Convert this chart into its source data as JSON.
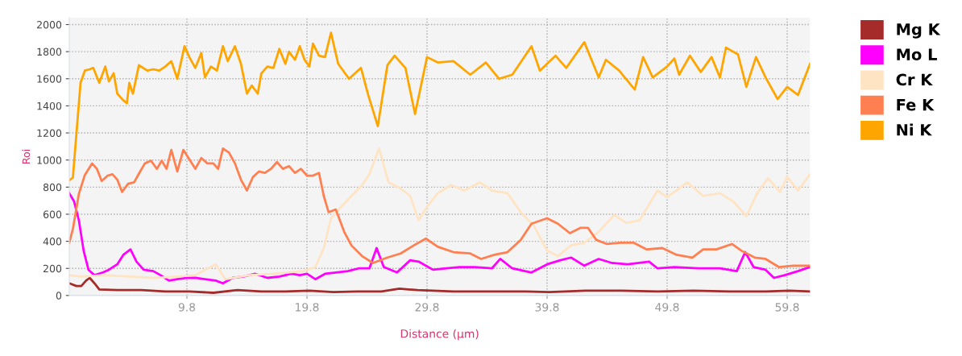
{
  "chart_data": {
    "type": "line",
    "xlabel": "Distance (µm)",
    "ylabel": "Roi",
    "xlim": [
      0,
      61.7
    ],
    "ylim": [
      0,
      2050
    ],
    "xticks": [
      9.8,
      19.8,
      29.8,
      39.8,
      49.8,
      59.8
    ],
    "yticks": [
      0,
      200,
      400,
      600,
      800,
      1000,
      1200,
      1400,
      1600,
      1800,
      2000
    ],
    "grid": true,
    "legend": "right",
    "line_style": "solid",
    "marker": "none",
    "series": [
      {
        "name": "Mg K",
        "color": "#a52a2a",
        "x": [
          0,
          0.6,
          1.0,
          1.4,
          1.7,
          2.1,
          2.5,
          4,
          6,
          8,
          10,
          12,
          14,
          16,
          18,
          20,
          22,
          24,
          26,
          27.5,
          29,
          32,
          35,
          38,
          40,
          43,
          46,
          49,
          52,
          55,
          58,
          60,
          61.7
        ],
        "values": [
          90,
          70,
          70,
          110,
          130,
          90,
          45,
          40,
          40,
          30,
          30,
          20,
          40,
          30,
          30,
          35,
          25,
          30,
          30,
          50,
          40,
          30,
          30,
          30,
          25,
          35,
          35,
          30,
          35,
          30,
          30,
          35,
          30
        ]
      },
      {
        "name": "Mo L",
        "color": "#ff00ff",
        "x": [
          0,
          0.4,
          0.8,
          1.2,
          1.6,
          2.1,
          2.8,
          3.3,
          4.0,
          4.5,
          5.1,
          5.6,
          6.2,
          7.0,
          7.6,
          8.3,
          9.0,
          9.8,
          10.5,
          11.3,
          12.2,
          12.8,
          13.6,
          14.5,
          15.5,
          16.5,
          17.5,
          18.5,
          19.2,
          19.8,
          20.5,
          21.3,
          22.2,
          23.2,
          24.1,
          25.0,
          25.6,
          26.2,
          27.3,
          28.4,
          29.1,
          30.3,
          31.4,
          32.5,
          33.8,
          35.2,
          35.9,
          36.9,
          38.5,
          39.8,
          40.9,
          41.8,
          42.9,
          44.1,
          45.2,
          46.5,
          48.3,
          49.0,
          50.4,
          52.4,
          54.2,
          55.6,
          56.3,
          57.0,
          58.0,
          58.7,
          59.6,
          60.7,
          61.7
        ],
        "values": [
          755,
          695,
          555,
          330,
          190,
          150,
          170,
          190,
          230,
          300,
          340,
          250,
          190,
          180,
          150,
          110,
          120,
          130,
          130,
          120,
          110,
          90,
          130,
          140,
          160,
          130,
          140,
          160,
          150,
          160,
          120,
          160,
          170,
          180,
          200,
          200,
          350,
          210,
          170,
          260,
          250,
          190,
          200,
          210,
          210,
          200,
          270,
          200,
          170,
          230,
          260,
          280,
          220,
          270,
          240,
          230,
          250,
          200,
          210,
          200,
          200,
          180,
          320,
          210,
          190,
          130,
          150,
          180,
          210
        ]
      },
      {
        "name": "Cr K",
        "color": "#ffe4c4",
        "x": [
          0,
          1,
          3,
          5,
          7,
          9,
          10.5,
          12.2,
          13,
          15,
          17,
          19.5,
          20.5,
          21.2,
          21.8,
          22.6,
          23.5,
          24.4,
          25.0,
          25.8,
          26.6,
          27.5,
          28.4,
          29.1,
          29.8,
          30.7,
          31.8,
          32.9,
          34.2,
          35.2,
          36.5,
          37.6,
          38.7,
          39.8,
          40.7,
          41.8,
          42.9,
          44.1,
          45.4,
          46.4,
          47.5,
          49.0,
          49.8,
          51.5,
          52.8,
          54.2,
          55.3,
          56.4,
          57.3,
          58.2,
          59.2,
          59.8,
          60.7,
          61.7
        ],
        "values": [
          150,
          140,
          150,
          140,
          130,
          140,
          150,
          230,
          120,
          150,
          160,
          180,
          210,
          350,
          570,
          650,
          735,
          815,
          895,
          1085,
          835,
          795,
          735,
          555,
          655,
          755,
          815,
          775,
          835,
          775,
          755,
          615,
          515,
          330,
          290,
          370,
          390,
          470,
          595,
          535,
          555,
          775,
          725,
          835,
          735,
          755,
          695,
          585,
          755,
          865,
          765,
          875,
          775,
          895
        ]
      },
      {
        "name": "Fe K",
        "color": "#ff7f50",
        "x": [
          0,
          0.3,
          0.8,
          1.3,
          1.9,
          2.3,
          2.7,
          3.2,
          3.6,
          4.0,
          4.4,
          4.9,
          5.4,
          5.9,
          6.3,
          6.8,
          7.3,
          7.7,
          8.1,
          8.5,
          9.0,
          9.5,
          10.0,
          10.5,
          11.0,
          11.5,
          12.0,
          12.4,
          12.8,
          13.3,
          13.8,
          14.3,
          14.8,
          15.3,
          15.8,
          16.3,
          16.8,
          17.3,
          17.8,
          18.3,
          18.8,
          19.3,
          19.8,
          20.3,
          20.8,
          21.2,
          21.6,
          22.2,
          22.9,
          23.5,
          24.4,
          25.3,
          26.5,
          27.6,
          28.7,
          29.7,
          30.7,
          32.0,
          33.4,
          34.3,
          35.4,
          36.5,
          37.6,
          38.5,
          39.8,
          40.7,
          41.7,
          42.6,
          43.2,
          43.9,
          44.8,
          45.9,
          47.0,
          48.1,
          49.4,
          50.6,
          51.9,
          52.8,
          53.9,
          55.2,
          56.0,
          57.1,
          58.0,
          59.1,
          60.3,
          61.7
        ],
        "values": [
          390,
          490,
          750,
          890,
          975,
          935,
          845,
          885,
          895,
          855,
          765,
          825,
          835,
          915,
          975,
          995,
          935,
          995,
          935,
          1075,
          915,
          1075,
          1005,
          935,
          1015,
          975,
          975,
          935,
          1085,
          1055,
          975,
          855,
          775,
          875,
          915,
          905,
          935,
          985,
          935,
          955,
          905,
          935,
          885,
          885,
          905,
          735,
          615,
          635,
          470,
          370,
          290,
          240,
          280,
          310,
          370,
          420,
          360,
          320,
          310,
          270,
          300,
          320,
          410,
          530,
          570,
          530,
          460,
          500,
          500,
          410,
          380,
          390,
          390,
          340,
          350,
          300,
          280,
          340,
          340,
          380,
          330,
          280,
          270,
          210,
          220,
          220
        ]
      },
      {
        "name": "Ni K",
        "color": "#ffa500",
        "x": [
          0,
          0.3,
          0.94,
          1.3,
          1.7,
          2.0,
          2.5,
          3.0,
          3.3,
          3.7,
          4.0,
          4.5,
          4.8,
          5.0,
          5.3,
          5.8,
          6.5,
          7.0,
          7.5,
          8.0,
          8.5,
          9.0,
          9.6,
          10.0,
          10.5,
          11.0,
          11.3,
          11.8,
          12.3,
          12.8,
          13.2,
          13.8,
          14.3,
          14.8,
          15.2,
          15.7,
          16.0,
          16.5,
          17.0,
          17.5,
          18.0,
          18.3,
          18.8,
          19.2,
          19.6,
          20.0,
          20.3,
          20.8,
          21.3,
          21.8,
          22.4,
          23.3,
          24.3,
          24.9,
          25.7,
          26.5,
          27.1,
          28.0,
          28.8,
          29.8,
          30.7,
          32.0,
          33.4,
          34.7,
          35.8,
          36.9,
          38.5,
          39.2,
          40.5,
          41.4,
          42.9,
          44.1,
          44.7,
          45.8,
          47.1,
          47.8,
          48.6,
          49.8,
          50.4,
          50.8,
          51.7,
          52.6,
          53.5,
          54.2,
          54.7,
          55.7,
          56.4,
          57.2,
          58.0,
          59.0,
          59.8,
          60.7,
          61.7
        ],
        "values": [
          850,
          870,
          1570,
          1660,
          1670,
          1680,
          1570,
          1690,
          1580,
          1640,
          1490,
          1440,
          1420,
          1570,
          1490,
          1700,
          1660,
          1670,
          1660,
          1690,
          1730,
          1600,
          1840,
          1760,
          1680,
          1790,
          1610,
          1690,
          1660,
          1840,
          1730,
          1840,
          1710,
          1490,
          1550,
          1490,
          1640,
          1690,
          1680,
          1820,
          1710,
          1800,
          1740,
          1840,
          1740,
          1690,
          1860,
          1770,
          1760,
          1940,
          1710,
          1600,
          1680,
          1480,
          1250,
          1700,
          1770,
          1680,
          1340,
          1760,
          1720,
          1730,
          1630,
          1720,
          1600,
          1630,
          1840,
          1660,
          1770,
          1680,
          1870,
          1610,
          1740,
          1660,
          1520,
          1760,
          1610,
          1690,
          1750,
          1630,
          1770,
          1650,
          1760,
          1610,
          1830,
          1780,
          1540,
          1760,
          1610,
          1450,
          1540,
          1480,
          1710
        ]
      }
    ]
  }
}
